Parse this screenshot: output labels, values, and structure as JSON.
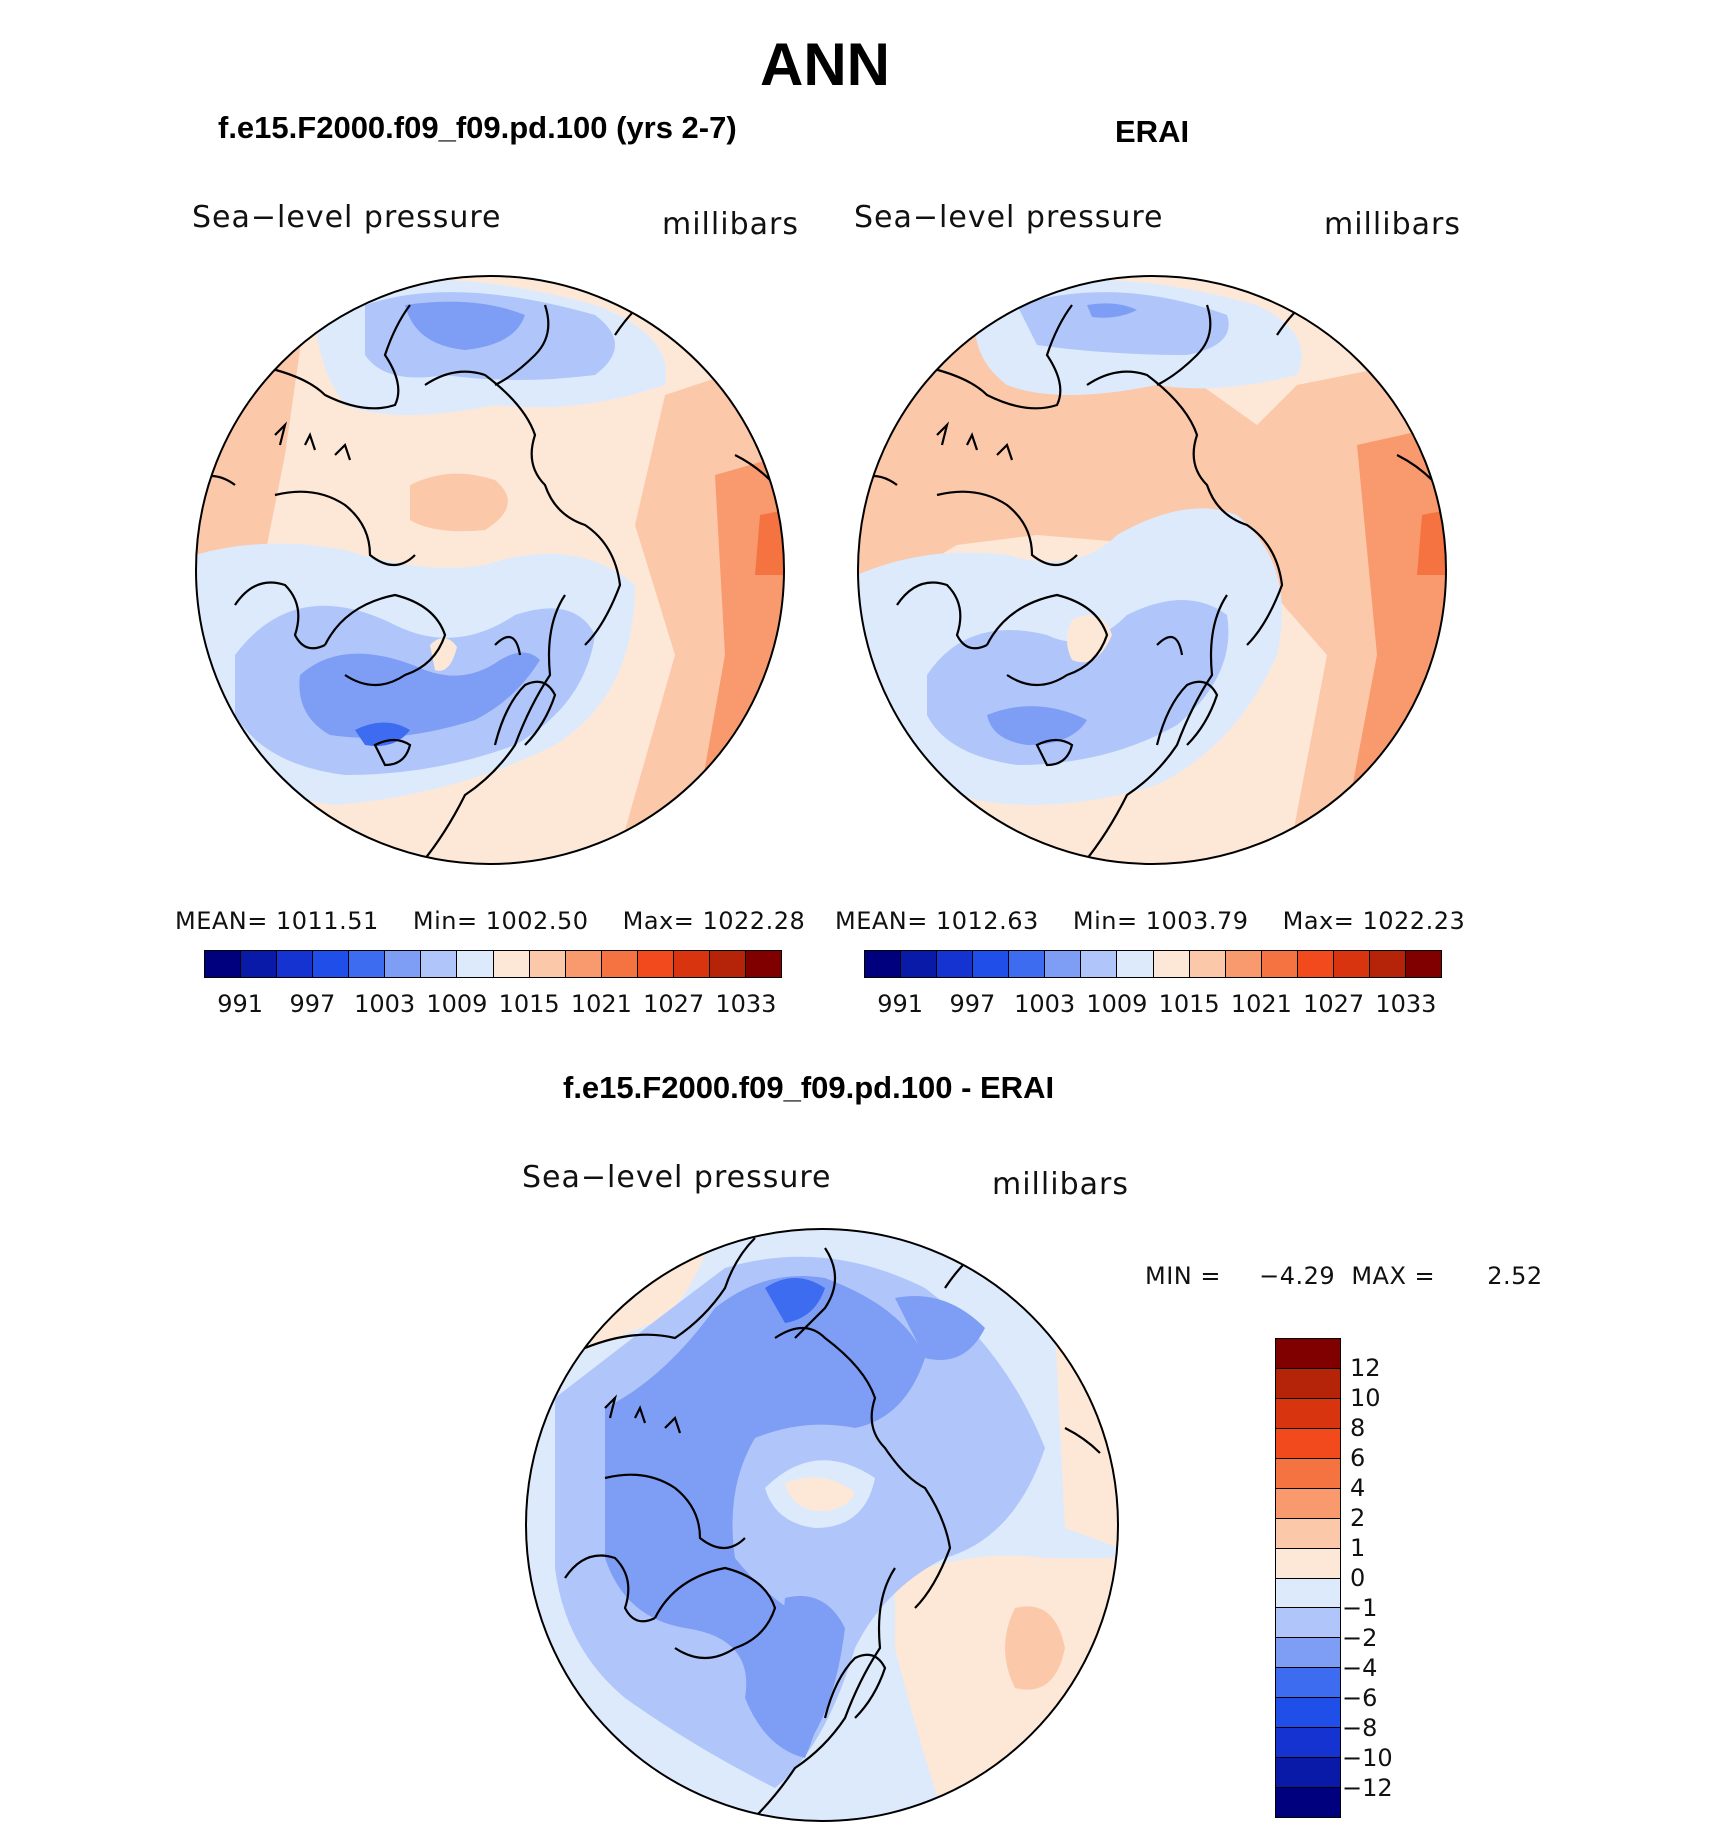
{
  "page_title": "ANN",
  "panels": [
    {
      "title": "f.e15.F2000.f09_f09.pd.100 (yrs 2-7)",
      "variable": "Sea−level pressure",
      "units": "millibars",
      "mean_label": "MEAN=",
      "mean": "1011.51",
      "min_label": "Min=",
      "min": "1002.50",
      "max_label": "Max=",
      "max": "1022.28"
    },
    {
      "title": "ERAI",
      "variable": "Sea−level pressure",
      "units": "millibars",
      "mean_label": "MEAN=",
      "mean": "1012.63",
      "min_label": "Min=",
      "min": "1003.79",
      "max_label": "Max=",
      "max": "1022.23"
    }
  ],
  "abs_colorbar": {
    "colors": [
      "#00007f",
      "#0a1aa8",
      "#1533d1",
      "#1f4ee8",
      "#3d6cf0",
      "#7e9ef5",
      "#b0c6fa",
      "#dceafc",
      "#fde8d8",
      "#fcc8aa",
      "#f89a6d",
      "#f57340",
      "#f24a1c",
      "#d93410",
      "#b52408",
      "#800000"
    ],
    "labels": [
      "991",
      "997",
      "1003",
      "1009",
      "1015",
      "1021",
      "1027",
      "1033"
    ]
  },
  "diff_panel": {
    "title": "f.e15.F2000.f09_f09.pd.100 - ERAI",
    "variable": "Sea−level pressure",
    "units": "millibars",
    "min_label": "MIN =",
    "min": "−4.29",
    "max_label": "MAX =",
    "max": "2.52"
  },
  "diff_colorbar": {
    "colors": [
      "#800000",
      "#b52408",
      "#d93410",
      "#f24a1c",
      "#f57340",
      "#f89a6d",
      "#fcc8aa",
      "#fde8d8",
      "#dceafc",
      "#b0c6fa",
      "#7e9ef5",
      "#3d6cf0",
      "#1f4ee8",
      "#1533d1",
      "#0a1aa8",
      "#00007f"
    ],
    "labels": [
      "12",
      "10",
      "8",
      "6",
      "4",
      "2",
      "1",
      "0",
      "−1",
      "−2",
      "−4",
      "−6",
      "−8",
      "−10",
      "−12"
    ]
  }
}
